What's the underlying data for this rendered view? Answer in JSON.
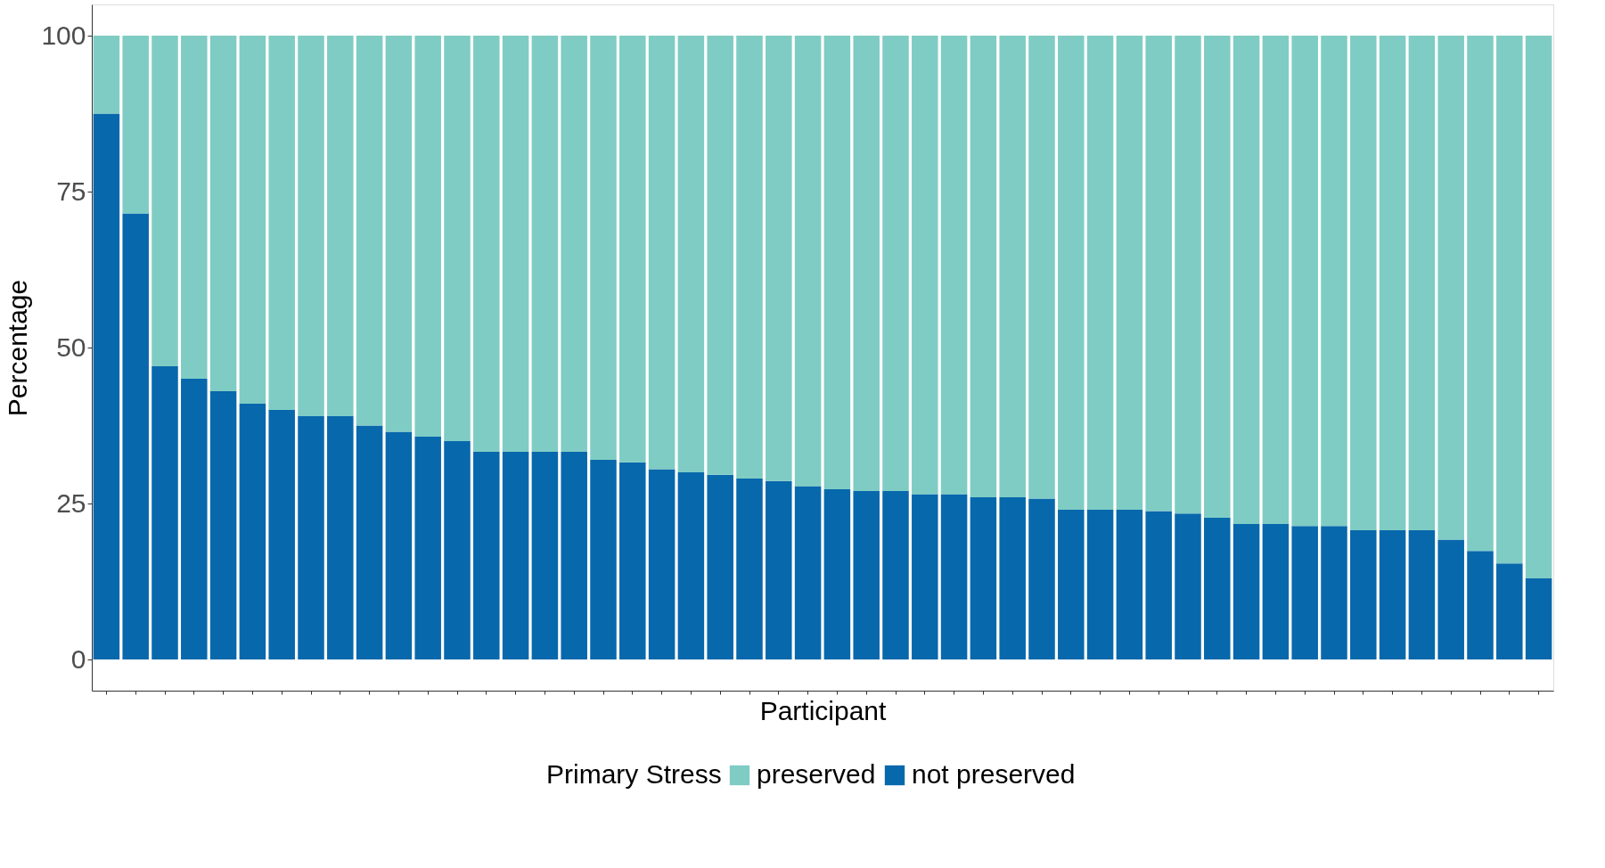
{
  "chart_data": {
    "type": "bar",
    "stacked": true,
    "xlabel": "Participant",
    "ylabel": "Percentage",
    "legend_title": "Primary Stress",
    "legend": "bottom",
    "grid": false,
    "tick_labels": "y",
    "categories": [
      null,
      null,
      null,
      null,
      null,
      null,
      null,
      null,
      null,
      null,
      null,
      null,
      null,
      null,
      null,
      null,
      null,
      null,
      null,
      null,
      null,
      null,
      null,
      null,
      null,
      null,
      null,
      null,
      null,
      null,
      null,
      null,
      null,
      null,
      null,
      null,
      null,
      null,
      null,
      null,
      null,
      null,
      null,
      null,
      null,
      null,
      null,
      null,
      null,
      null
    ],
    "ylim": [
      -5,
      105
    ],
    "yticks": [
      0,
      25,
      50,
      75,
      100
    ],
    "series": [
      {
        "name": "not preserved",
        "color": "#0868ac",
        "values": [
          87.5,
          71.5,
          47,
          45,
          43,
          41,
          40,
          39,
          39,
          37.5,
          36.5,
          35.7,
          35,
          33.3,
          33.3,
          33.3,
          33.3,
          32,
          31.6,
          30.5,
          30,
          29.6,
          29,
          28.6,
          27.8,
          27.3,
          27,
          27,
          26.5,
          26.5,
          26,
          26,
          25.8,
          24,
          24,
          24,
          23.8,
          23.4,
          22.7,
          21.7,
          21.7,
          21.4,
          21.4,
          20.7,
          20.7,
          20.7,
          19.2,
          17.4,
          15.4,
          13
        ]
      },
      {
        "name": "preserved",
        "color": "#7fccc4",
        "values": [
          12.5,
          28.5,
          53,
          55,
          57,
          59,
          60,
          61,
          61,
          62.5,
          63.5,
          64.3,
          65,
          66.7,
          66.7,
          66.7,
          66.7,
          68,
          68.4,
          69.5,
          70,
          70.4,
          71,
          71.4,
          72.2,
          72.7,
          73,
          73,
          73.5,
          73.5,
          74,
          74,
          74.2,
          76,
          76,
          76,
          76.2,
          76.6,
          77.3,
          78.3,
          78.3,
          78.6,
          78.6,
          79.3,
          79.3,
          79.3,
          80.8,
          82.6,
          84.6,
          87
        ]
      }
    ]
  }
}
